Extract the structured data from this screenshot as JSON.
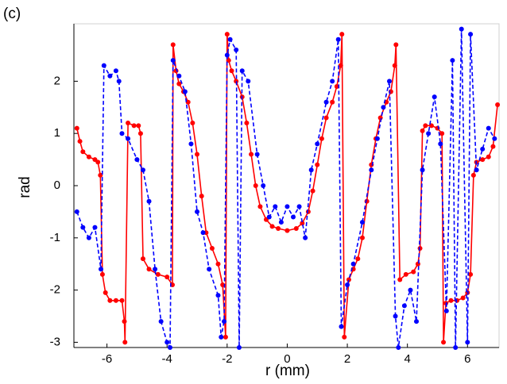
{
  "chart_data": {
    "type": "line",
    "panel_label": "(c)",
    "xlabel": "r (mm)",
    "ylabel": "rad",
    "xlim": [
      -7.1,
      7.05
    ],
    "ylim": [
      -3.1,
      3.1
    ],
    "xticks": [
      -6,
      -4,
      -2,
      0,
      2,
      4,
      6
    ],
    "yticks": [
      -3,
      -2,
      -1,
      0,
      1,
      2
    ],
    "series": [
      {
        "color": "#ff0000",
        "linestyle": "solid",
        "x": [
          -7.0,
          -6.9,
          -6.8,
          -6.6,
          -6.4,
          -6.3,
          -6.22,
          -6.15,
          -6.05,
          -5.9,
          -5.7,
          -5.5,
          -5.42,
          -5.4,
          -5.3,
          -5.1,
          -4.95,
          -4.88,
          -4.8,
          -4.6,
          -4.3,
          -4.0,
          -3.82,
          -3.8,
          -3.7,
          -3.6,
          -3.45,
          -3.3,
          -3.15,
          -3.0,
          -2.85,
          -2.7,
          -2.5,
          -2.3,
          -2.15,
          -2.05,
          -2.0,
          -1.95,
          -1.85,
          -1.7,
          -1.5,
          -1.35,
          -1.2,
          -1.05,
          -0.9,
          -0.7,
          -0.5,
          -0.3,
          0.0,
          0.3,
          0.5,
          0.7,
          0.85,
          1.0,
          1.15,
          1.3,
          1.5,
          1.65,
          1.78,
          1.82,
          1.9,
          2.05,
          2.2,
          2.35,
          2.5,
          2.65,
          2.8,
          2.95,
          3.1,
          3.3,
          3.45,
          3.58,
          3.62,
          3.75,
          3.95,
          4.2,
          4.35,
          4.42,
          4.5,
          4.6,
          4.8,
          5.0,
          5.15,
          5.2,
          5.28,
          5.45,
          5.65,
          5.85,
          6.0,
          6.1,
          6.2,
          6.3,
          6.5,
          6.7,
          6.85,
          7.0
        ],
        "values": [
          1.1,
          0.85,
          0.65,
          0.55,
          0.5,
          0.45,
          0.2,
          -1.7,
          -2.05,
          -2.2,
          -2.2,
          -2.2,
          -2.6,
          -3.0,
          1.2,
          1.15,
          1.15,
          1.0,
          -1.4,
          -1.6,
          -1.7,
          -1.75,
          -1.9,
          2.7,
          2.2,
          1.95,
          1.8,
          1.6,
          1.2,
          0.6,
          -0.2,
          -0.9,
          -1.2,
          -1.5,
          -1.9,
          -2.9,
          2.9,
          2.4,
          2.2,
          2.0,
          1.7,
          1.2,
          0.6,
          0.0,
          -0.4,
          -0.65,
          -0.78,
          -0.82,
          -0.86,
          -0.82,
          -0.72,
          -0.5,
          -0.1,
          0.4,
          0.9,
          1.3,
          1.6,
          1.9,
          2.3,
          2.9,
          -2.9,
          -1.8,
          -1.6,
          -1.4,
          -1.0,
          -0.3,
          0.4,
          0.9,
          1.3,
          1.6,
          1.8,
          2.3,
          2.7,
          -1.8,
          -1.7,
          -1.65,
          -1.5,
          -1.2,
          1.05,
          1.15,
          1.15,
          1.1,
          1.0,
          -3.0,
          -2.25,
          -2.2,
          -2.2,
          -2.15,
          -2.05,
          -1.7,
          0.2,
          0.45,
          0.5,
          0.55,
          0.75,
          1.55
        ]
      },
      {
        "color": "#0000ff",
        "linestyle": "dashed",
        "x": [
          -7.0,
          -6.8,
          -6.6,
          -6.4,
          -6.2,
          -6.1,
          -5.9,
          -5.7,
          -5.6,
          -5.5,
          -5.3,
          -5.0,
          -4.8,
          -4.6,
          -4.4,
          -4.2,
          -4.0,
          -3.9,
          -3.8,
          -3.6,
          -3.4,
          -3.2,
          -3.0,
          -2.8,
          -2.6,
          -2.3,
          -2.2,
          -2.1,
          -2.0,
          -1.9,
          -1.7,
          -1.6,
          -1.5,
          -1.3,
          -1.0,
          -0.8,
          -0.6,
          -0.4,
          -0.2,
          0.0,
          0.2,
          0.4,
          0.6,
          0.8,
          1.0,
          1.3,
          1.5,
          1.7,
          1.8,
          2.0,
          2.2,
          2.5,
          2.8,
          3.0,
          3.2,
          3.4,
          3.6,
          3.7,
          3.9,
          4.1,
          4.3,
          4.5,
          4.7,
          4.9,
          5.1,
          5.3,
          5.5,
          5.6,
          5.8,
          6.0,
          6.1,
          6.3,
          6.5,
          6.7,
          6.9
        ],
        "values": [
          -0.5,
          -0.8,
          -1.0,
          -0.8,
          -1.6,
          2.3,
          2.1,
          2.2,
          2.0,
          1.0,
          0.9,
          0.5,
          0.3,
          -0.3,
          -1.6,
          -2.6,
          -3.0,
          -3.1,
          2.4,
          2.1,
          1.8,
          0.8,
          -0.5,
          -0.9,
          -1.6,
          -2.1,
          -2.9,
          -2.6,
          2.5,
          2.8,
          2.6,
          -3.1,
          2.2,
          2.0,
          0.6,
          0.0,
          -0.6,
          -0.4,
          -0.7,
          -0.4,
          -0.6,
          -0.4,
          -1.0,
          0.3,
          0.8,
          1.6,
          2.0,
          2.8,
          -2.7,
          -1.9,
          -1.5,
          -0.7,
          0.3,
          0.9,
          1.5,
          2.0,
          -2.5,
          -3.1,
          -2.3,
          -2.0,
          -2.6,
          0.3,
          1.0,
          1.7,
          0.8,
          -2.4,
          2.4,
          -3.1,
          3.0,
          -3.0,
          2.9,
          0.3,
          0.7,
          1.1,
          0.9
        ]
      }
    ]
  }
}
